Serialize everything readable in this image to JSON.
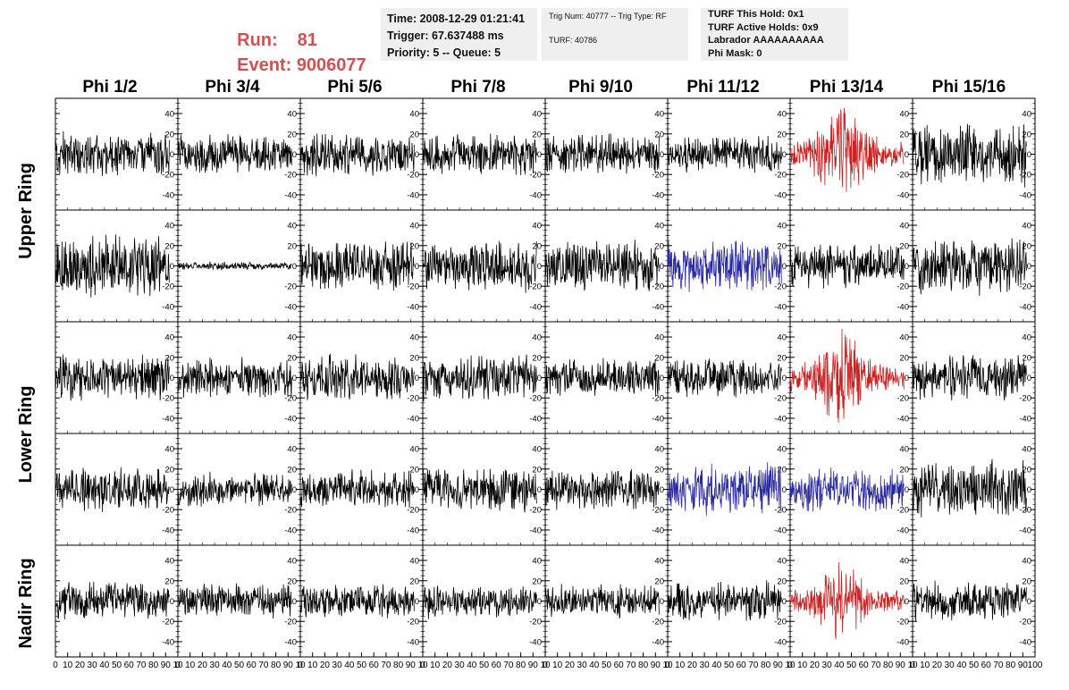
{
  "header": {
    "run_label": "Run:",
    "run_value": "81",
    "event_label": "Event:",
    "event_value": "9006077",
    "time_text": "Time: 2008-12-29 01:21:41",
    "trigger_text": "Trigger: 67.637488 ms",
    "priority_text": "Priority: 5 -- Queue: 5",
    "trig_num_text": "Trig Num: 40777 -- Trig Type: RF",
    "turf_text": "TURF: 40786",
    "turf_hold_text": "TURF This Hold: 0x1",
    "turf_active_text": "TURF Active Holds: 0x9",
    "labrador_text": "Labrador AAAAAAAAAA",
    "phi_mask_text": "Phi Mask: 0"
  },
  "colors": {
    "header_red": "#d25050",
    "trace_default": "#000000",
    "trace_red": "#cc2222",
    "trace_blue": "#2a2aa0"
  },
  "chart_data": {
    "type": "line",
    "columns": [
      "Phi 1/2",
      "Phi 3/4",
      "Phi 5/6",
      "Phi 7/8",
      "Phi 9/10",
      "Phi 11/12",
      "Phi 13/14",
      "Phi 15/16"
    ],
    "row_labels": [
      "Upper Ring",
      "Lower Ring",
      "Nadir Ring"
    ],
    "rows_per_label": [
      2,
      2,
      1
    ],
    "n_rows": 5,
    "xlim": [
      0,
      100
    ],
    "ylim": [
      -55,
      55
    ],
    "y_ticks": [
      40,
      20,
      0,
      -20,
      -40
    ],
    "x_tick_labels_inner": [
      "0",
      "10",
      "20",
      "30",
      "40",
      "50",
      "60",
      "70",
      "80",
      "90",
      "10"
    ],
    "x_tick_labels_last": [
      "0",
      "10",
      "20",
      "30",
      "40",
      "50",
      "60",
      "70",
      "80",
      "90",
      "100"
    ],
    "trace_colors": [
      [
        "black",
        "black",
        "black",
        "black",
        "black",
        "black",
        "red",
        "black"
      ],
      [
        "black",
        "black",
        "black",
        "black",
        "black",
        "blue",
        "black",
        "black"
      ],
      [
        "black",
        "black",
        "black",
        "black",
        "black",
        "black",
        "red",
        "black"
      ],
      [
        "black",
        "black",
        "black",
        "black",
        "black",
        "blue",
        "blue",
        "black"
      ],
      [
        "black",
        "black",
        "black",
        "black",
        "black",
        "black",
        "red",
        "black"
      ]
    ],
    "amplitudes": [
      [
        16,
        14,
        16,
        14,
        14,
        14,
        28,
        22
      ],
      [
        22,
        3,
        18,
        18,
        18,
        18,
        16,
        20
      ],
      [
        16,
        14,
        16,
        16,
        14,
        14,
        28,
        16
      ],
      [
        16,
        12,
        14,
        16,
        14,
        18,
        16,
        20
      ],
      [
        14,
        12,
        12,
        12,
        12,
        14,
        22,
        14
      ]
    ]
  }
}
